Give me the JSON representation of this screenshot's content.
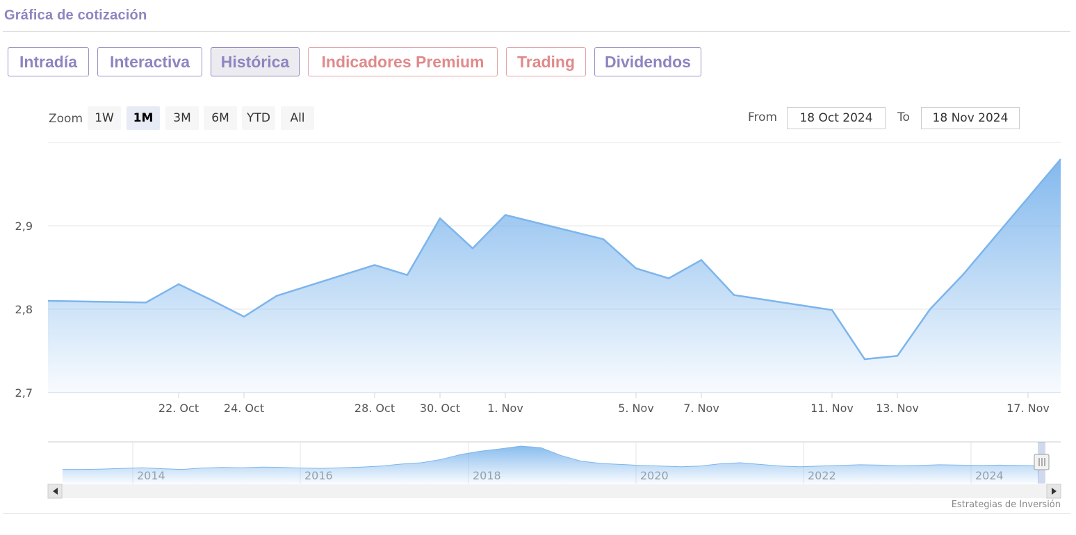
{
  "header": {
    "title": "Gráfica de cotización"
  },
  "tabs": [
    {
      "label": "Intradía",
      "active": false,
      "premium": false
    },
    {
      "label": "Interactiva",
      "active": false,
      "premium": false
    },
    {
      "label": "Histórica",
      "active": true,
      "premium": false
    },
    {
      "label": "Indicadores Premium",
      "active": false,
      "premium": true
    },
    {
      "label": "Trading",
      "active": false,
      "premium": true
    },
    {
      "label": "Dividendos",
      "active": false,
      "premium": false
    }
  ],
  "zoom": {
    "label": "Zoom",
    "options": [
      "1W",
      "1M",
      "3M",
      "6M",
      "YTD",
      "All"
    ],
    "selected": "1M"
  },
  "range": {
    "from_label": "From",
    "from_value": "18 Oct 2024",
    "to_label": "To",
    "to_value": "18 Nov 2024"
  },
  "colors": {
    "line": "#7cb5ec",
    "accent": "#8f84c0",
    "premium": "#e08a8a"
  },
  "chart_data": {
    "type": "area",
    "x": [
      "2024-10-18",
      "2024-10-21",
      "2024-10-22",
      "2024-10-23",
      "2024-10-24",
      "2024-10-25",
      "2024-10-28",
      "2024-10-29",
      "2024-10-30",
      "2024-10-31",
      "2024-11-01",
      "2024-11-04",
      "2024-11-05",
      "2024-11-06",
      "2024-11-07",
      "2024-11-08",
      "2024-11-11",
      "2024-11-12",
      "2024-11-13",
      "2024-11-14",
      "2024-11-15",
      "2024-11-18"
    ],
    "values": [
      2.81,
      2.808,
      2.83,
      2.811,
      2.791,
      2.816,
      2.853,
      2.841,
      2.909,
      2.873,
      2.913,
      2.884,
      2.849,
      2.837,
      2.859,
      2.817,
      2.799,
      2.74,
      2.744,
      2.8,
      2.841,
      2.98
    ],
    "ylim": [
      2.7,
      3.0
    ],
    "y_ticks": [
      "2,7",
      "2,8",
      "2,9"
    ],
    "x_tick_labels": [
      "22. Oct",
      "24. Oct",
      "28. Oct",
      "30. Oct",
      "1. Nov",
      "5. Nov",
      "7. Nov",
      "11. Nov",
      "13. Nov",
      "17. Nov"
    ],
    "navigator_labels": [
      "2014",
      "2016",
      "2018",
      "2020",
      "2022",
      "2024"
    ],
    "grid": true,
    "legend": "none"
  },
  "navigator_series": [
    0.3,
    0.3,
    0.31,
    0.33,
    0.35,
    0.32,
    0.3,
    0.34,
    0.36,
    0.35,
    0.37,
    0.36,
    0.34,
    0.33,
    0.35,
    0.37,
    0.4,
    0.46,
    0.5,
    0.6,
    0.75,
    0.85,
    0.92,
    1.0,
    0.95,
    0.72,
    0.55,
    0.48,
    0.45,
    0.42,
    0.4,
    0.38,
    0.4,
    0.47,
    0.5,
    0.45,
    0.4,
    0.38,
    0.4,
    0.42,
    0.44,
    0.43,
    0.41,
    0.42,
    0.44,
    0.43,
    0.42,
    0.43,
    0.42,
    0.41
  ],
  "credit": "Estrategias de Inversión"
}
